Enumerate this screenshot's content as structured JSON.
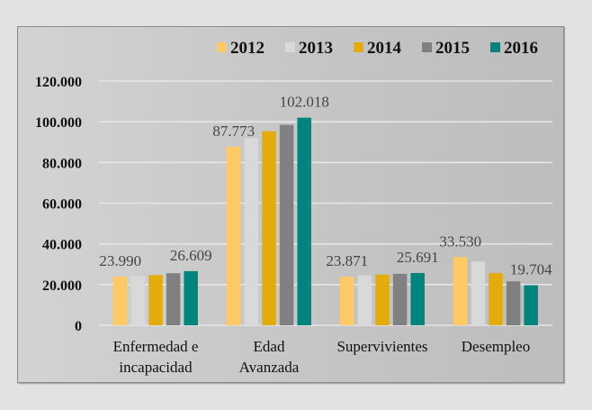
{
  "chart_data": {
    "type": "bar",
    "title": "",
    "xlabel": "",
    "ylabel": "",
    "ylim": [
      0,
      120000
    ],
    "yticks": [
      0,
      20000,
      40000,
      60000,
      80000,
      100000,
      120000
    ],
    "ytick_labels": [
      "0",
      "20.000",
      "40.000",
      "60.000",
      "80.000",
      "100.000",
      "120.000"
    ],
    "grid": true,
    "legend_position": "top-right",
    "categories": [
      [
        "Enfermedad e",
        "incapacidad"
      ],
      [
        "Edad",
        "Avanzada"
      ],
      [
        "Supervivientes"
      ],
      [
        "Desempleo"
      ]
    ],
    "series": [
      {
        "name": "2012",
        "color": "#FFC966",
        "values": [
          23990,
          87773,
          23871,
          33530
        ]
      },
      {
        "name": "2013",
        "color": "#D9D9D9",
        "values": [
          24000,
          92000,
          24500,
          31300
        ]
      },
      {
        "name": "2014",
        "color": "#E3AC0A",
        "values": [
          24700,
          95400,
          24900,
          25600
        ]
      },
      {
        "name": "2015",
        "color": "#808080",
        "values": [
          25600,
          98500,
          25300,
          21600
        ]
      },
      {
        "name": "2016",
        "color": "#00847E",
        "values": [
          26609,
          102018,
          25691,
          19704
        ]
      }
    ],
    "data_labels": [
      {
        "series": 0,
        "category": 0,
        "text": "23.990"
      },
      {
        "series": 4,
        "category": 0,
        "text": "26.609"
      },
      {
        "series": 0,
        "category": 1,
        "text": "87.773"
      },
      {
        "series": 4,
        "category": 1,
        "text": "102.018"
      },
      {
        "series": 0,
        "category": 2,
        "text": "23.871"
      },
      {
        "series": 4,
        "category": 2,
        "text": "25.691"
      },
      {
        "series": 0,
        "category": 3,
        "text": "33.530"
      },
      {
        "series": 4,
        "category": 3,
        "text": "19.704"
      }
    ]
  }
}
